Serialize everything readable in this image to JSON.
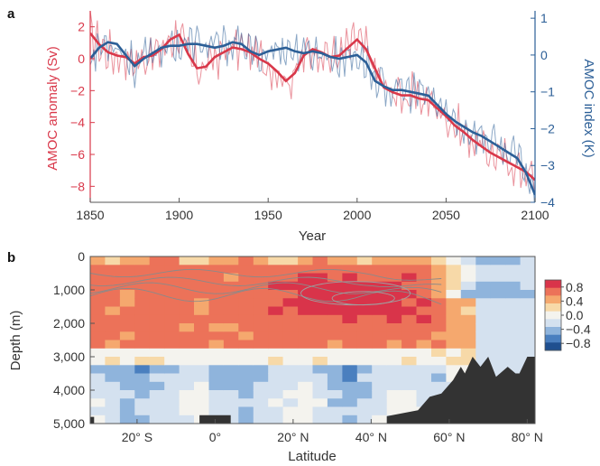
{
  "chart_data": [
    {
      "panel": "a",
      "type": "line",
      "xlabel": "Year",
      "ylabel_left": "AMOC anomaly (Sv)",
      "ylabel_right": "AMOC index (K)",
      "xlim": [
        1850,
        2100
      ],
      "ylim_left": [
        -9,
        3
      ],
      "ylim_right": [
        -4,
        1.2
      ],
      "x_ticks": [
        "1850",
        "1900",
        "1950",
        "2000",
        "2050",
        "2100"
      ],
      "y_ticks_left": [
        "2",
        "0",
        "−2",
        "−4",
        "−6",
        "−8"
      ],
      "y_ticks_right": [
        "1",
        "0",
        "−1",
        "−2",
        "−3",
        "−4"
      ],
      "colors": {
        "amoc": "#d9384a",
        "index": "#2c5f97"
      },
      "series": [
        {
          "axis": "left",
          "smoothed": true,
          "x": [
            1850,
            1855,
            1860,
            1865,
            1870,
            1875,
            1880,
            1885,
            1890,
            1895,
            1900,
            1905,
            1910,
            1915,
            1920,
            1925,
            1930,
            1935,
            1940,
            1945,
            1950,
            1955,
            1960,
            1965,
            1970,
            1975,
            1980,
            1985,
            1990,
            1995,
            2000,
            2005,
            2010,
            2015,
            2020,
            2025,
            2030,
            2035,
            2040,
            2045,
            2050,
            2055,
            2060,
            2065,
            2070,
            2075,
            2080,
            2085,
            2090,
            2095,
            2100
          ],
          "values": [
            1.6,
            0.9,
            0.4,
            0.2,
            0.1,
            -0.3,
            0.1,
            0.2,
            0.6,
            1.2,
            1.5,
            0.3,
            -0.6,
            -0.5,
            0.1,
            0.4,
            0.7,
            0.6,
            0.4,
            0.0,
            -0.3,
            -0.8,
            -1.4,
            -0.9,
            0.2,
            0.6,
            0.4,
            0.1,
            0.2,
            0.7,
            1.2,
            0.6,
            -0.6,
            -1.8,
            -2.1,
            -2.3,
            -2.3,
            -2.5,
            -2.6,
            -3.1,
            -3.6,
            -4.2,
            -4.6,
            -5.1,
            -5.5,
            -5.9,
            -6.2,
            -6.5,
            -6.8,
            -7.1,
            -7.6
          ]
        },
        {
          "axis": "right",
          "smoothed": true,
          "x": [
            1850,
            1855,
            1860,
            1865,
            1870,
            1875,
            1880,
            1885,
            1890,
            1895,
            1900,
            1905,
            1910,
            1915,
            1920,
            1925,
            1930,
            1935,
            1940,
            1945,
            1950,
            1955,
            1960,
            1965,
            1970,
            1975,
            1980,
            1985,
            1990,
            1995,
            2000,
            2005,
            2010,
            2015,
            2020,
            2025,
            2030,
            2035,
            2040,
            2045,
            2050,
            2055,
            2060,
            2065,
            2070,
            2075,
            2080,
            2085,
            2090,
            2095,
            2100
          ],
          "values": [
            -0.1,
            0.2,
            0.35,
            0.3,
            0.0,
            -0.3,
            -0.1,
            0.05,
            0.2,
            0.25,
            0.25,
            0.3,
            0.3,
            0.25,
            0.2,
            0.25,
            0.35,
            0.3,
            0.1,
            0.0,
            0.1,
            0.15,
            0.2,
            0.1,
            0.05,
            0.1,
            0.05,
            -0.05,
            -0.1,
            -0.05,
            0.0,
            -0.2,
            -0.7,
            -0.85,
            -0.95,
            -0.95,
            -1.0,
            -1.05,
            -1.1,
            -1.35,
            -1.6,
            -1.8,
            -1.95,
            -2.1,
            -2.2,
            -2.35,
            -2.5,
            -2.65,
            -2.8,
            -3.2,
            -3.8
          ]
        }
      ]
    },
    {
      "panel": "b",
      "type": "heatmap",
      "xlabel": "Latitude",
      "ylabel": "Depth (m)",
      "xlim": [
        -32,
        82
      ],
      "ylim": [
        0,
        5000
      ],
      "x_ticks": [
        "20° S",
        "0°",
        "20° N",
        "40° N",
        "60° N",
        "80° N"
      ],
      "y_ticks": [
        "0",
        "1,000",
        "2,000",
        "3,000",
        "4,000",
        "5,000"
      ],
      "colorbar": {
        "range": [
          -1.0,
          1.0
        ],
        "ticks": [
          "0.8",
          "0.4",
          "0.0",
          "−0.4",
          "−0.8"
        ],
        "colors": [
          "#1f4f8f",
          "#4a7fbf",
          "#8fb4dc",
          "#d4e1ef",
          "#f4f3ee",
          "#f7d9a8",
          "#f5a86e",
          "#ec7259",
          "#d9344a"
        ]
      },
      "land_color": "#333333"
    }
  ]
}
